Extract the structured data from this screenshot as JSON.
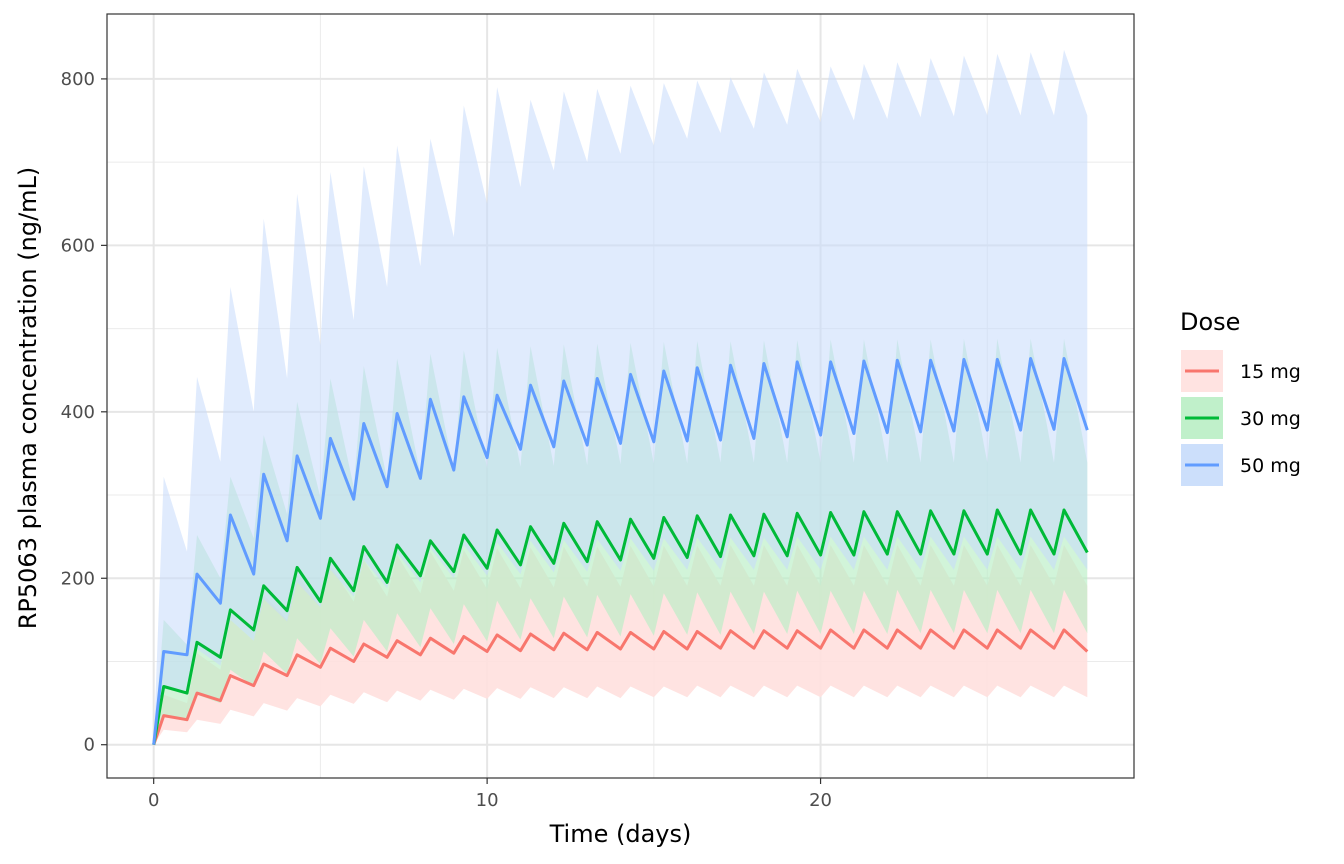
{
  "chart_data": {
    "type": "line",
    "title": "",
    "xlabel": "Time (days)",
    "ylabel": "RP5063 plasma concentration (ng/mL)",
    "xlim": [
      -1.4,
      29.4
    ],
    "ylim": [
      -40,
      878
    ],
    "x_ticks": [
      0,
      10,
      20
    ],
    "x_tick_labels": [
      "0",
      "10",
      "20"
    ],
    "y_ticks": [
      0,
      200,
      400,
      600,
      800
    ],
    "y_tick_labels": [
      "0",
      "200",
      "400",
      "600",
      "800"
    ],
    "grid": true,
    "legend": {
      "title": "Dose",
      "position": "right",
      "items": [
        "15 mg",
        "30 mg",
        "50 mg"
      ]
    },
    "dosing_interval_days": 1,
    "end_day": 28,
    "series": [
      {
        "name": "15 mg",
        "color": "#F8766D",
        "fill": "#FFE0DE",
        "fill_opacity": 0.9,
        "median_peaks": [
          35,
          62,
          83,
          97,
          108,
          116,
          121,
          125,
          128,
          130,
          132,
          133,
          134,
          135,
          135,
          136,
          136,
          137,
          137,
          137,
          138,
          138,
          138,
          138,
          138,
          138,
          138,
          138
        ],
        "median_troughs": [
          30,
          53,
          71,
          83,
          93,
          100,
          105,
          108,
          110,
          112,
          113,
          114,
          114,
          115,
          115,
          115,
          116,
          116,
          116,
          116,
          116,
          116,
          116,
          116,
          116,
          116,
          116,
          116
        ],
        "median_end": 112,
        "upper_peaks": [
          60,
          110,
          150,
          180,
          205,
          215,
          222,
          228,
          232,
          234,
          236,
          237,
          238,
          238,
          239,
          239,
          239,
          240,
          240,
          240,
          240,
          240,
          240,
          240,
          240,
          240,
          240,
          240
        ],
        "upper_troughs": [
          50,
          90,
          125,
          150,
          165,
          172,
          178,
          182,
          185,
          187,
          188,
          189,
          190,
          190,
          190,
          191,
          191,
          191,
          191,
          191,
          191,
          191,
          191,
          191,
          191,
          191,
          191,
          191
        ],
        "lower_peaks": [
          18,
          30,
          42,
          50,
          56,
          60,
          63,
          65,
          66,
          67,
          68,
          69,
          69,
          70,
          70,
          70,
          71,
          71,
          71,
          71,
          71,
          71,
          71,
          71,
          71,
          71,
          71,
          71
        ],
        "lower_troughs": [
          15,
          25,
          34,
          41,
          46,
          49,
          51,
          53,
          54,
          55,
          55,
          56,
          56,
          56,
          57,
          57,
          57,
          57,
          57,
          57,
          57,
          57,
          57,
          57,
          57,
          57,
          57,
          57
        ]
      },
      {
        "name": "30 mg",
        "color": "#00BA38",
        "fill": "#B9EEC4",
        "fill_opacity": 0.65,
        "median_peaks": [
          70,
          123,
          162,
          191,
          213,
          224,
          238,
          240,
          245,
          252,
          258,
          262,
          266,
          268,
          271,
          273,
          275,
          276,
          277,
          278,
          279,
          280,
          280,
          281,
          281,
          282,
          282,
          282
        ],
        "median_troughs": [
          62,
          105,
          138,
          161,
          172,
          185,
          195,
          203,
          208,
          212,
          216,
          218,
          220,
          222,
          224,
          225,
          226,
          227,
          227,
          228,
          228,
          229,
          229,
          229,
          229,
          229,
          229,
          229
        ],
        "median_end": 231,
        "upper_peaks": [
          150,
          252,
          322,
          372,
          412,
          440,
          455,
          464,
          470,
          474,
          477,
          479,
          481,
          482,
          483,
          484,
          485,
          485,
          486,
          486,
          487,
          487,
          487,
          487,
          488,
          488,
          488,
          488
        ],
        "upper_troughs": [
          120,
          200,
          248,
          277,
          297,
          310,
          319,
          325,
          329,
          332,
          334,
          335,
          336,
          337,
          338,
          338,
          339,
          339,
          339,
          339,
          339,
          339,
          339,
          339,
          339,
          339,
          339,
          339
        ],
        "lower_peaks": [
          35,
          60,
          90,
          112,
          128,
          140,
          150,
          158,
          164,
          169,
          173,
          176,
          178,
          180,
          181,
          182,
          183,
          184,
          184,
          185,
          185,
          185,
          186,
          186,
          186,
          186,
          186,
          186
        ],
        "lower_troughs": [
          28,
          50,
          70,
          85,
          97,
          106,
          112,
          117,
          121,
          124,
          126,
          128,
          129,
          130,
          131,
          132,
          132,
          133,
          133,
          133,
          133,
          133,
          134,
          134,
          134,
          134,
          134,
          134
        ]
      },
      {
        "name": "50 mg",
        "color": "#619CFF",
        "fill": "#C7DBFB",
        "fill_opacity": 0.55,
        "median_peaks": [
          112,
          205,
          276,
          325,
          347,
          368,
          386,
          398,
          415,
          418,
          420,
          432,
          437,
          440,
          445,
          449,
          453,
          456,
          458,
          460,
          460,
          461,
          462,
          462,
          463,
          463,
          464,
          464
        ],
        "median_troughs": [
          108,
          170,
          205,
          245,
          272,
          295,
          310,
          320,
          330,
          345,
          355,
          358,
          360,
          362,
          364,
          365,
          366,
          368,
          370,
          372,
          374,
          375,
          376,
          377,
          378,
          378,
          379,
          379
        ],
        "median_end": 378,
        "upper_peaks": [
          322,
          442,
          550,
          632,
          662,
          688,
          695,
          720,
          728,
          768,
          790,
          775,
          785,
          788,
          792,
          795,
          798,
          802,
          808,
          812,
          815,
          818,
          820,
          825,
          828,
          830,
          832,
          835
        ],
        "upper_troughs": [
          232,
          340,
          400,
          440,
          480,
          510,
          550,
          575,
          610,
          650,
          670,
          690,
          700,
          710,
          720,
          728,
          735,
          740,
          745,
          748,
          750,
          752,
          754,
          755,
          756,
          756,
          756,
          756
        ],
        "lower_peaks": [
          70,
          115,
          150,
          175,
          195,
          210,
          222,
          230,
          236,
          240,
          243,
          245,
          246,
          247,
          248,
          248,
          249,
          249,
          249,
          250,
          250,
          250,
          250,
          250,
          250,
          250,
          250,
          250
        ],
        "lower_troughs": [
          60,
          95,
          125,
          148,
          165,
          178,
          188,
          195,
          200,
          203,
          205,
          207,
          208,
          209,
          209,
          210,
          210,
          210,
          210,
          210,
          210,
          210,
          210,
          210,
          210,
          210,
          210,
          210
        ]
      }
    ]
  }
}
